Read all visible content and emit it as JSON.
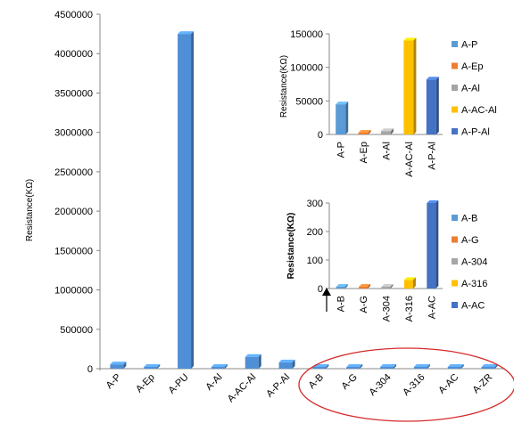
{
  "chart_data": [
    {
      "type": "bar",
      "categories": [
        "A-P",
        "A-Ep",
        "A-PU",
        "A-Al",
        "A-AC-Al",
        "A-P-Al",
        "A-B",
        "A-G",
        "A-304",
        "A-316",
        "A-AC",
        "A-ZR"
      ],
      "values": [
        55000,
        5000,
        4250000,
        3000,
        150000,
        80000,
        0,
        0,
        0,
        0,
        0,
        0
      ],
      "ylabel": "Resistance(KΩ)",
      "ylim": [
        0,
        4500000
      ],
      "yticks": [
        "0",
        "500000",
        "1000000",
        "1500000",
        "2000000",
        "2500000",
        "3000000",
        "3500000",
        "4000000",
        "4500000"
      ],
      "color": "#4f8fd6"
    },
    {
      "type": "bar",
      "categories": [
        "A-P",
        "A-Ep",
        "A-Al",
        "A-AC-Al",
        "A-P-Al"
      ],
      "values": [
        45000,
        1000,
        5000,
        140000,
        82000
      ],
      "colors": [
        "#5b9bd5",
        "#ed7d31",
        "#a5a5a5",
        "#ffc000",
        "#4472c4"
      ],
      "ylabel": "Resistance(KΩ)",
      "ylim": [
        0,
        150000
      ],
      "yticks": [
        "0",
        "50000",
        "100000",
        "150000"
      ],
      "legend": [
        "A-P",
        "A-Ep",
        "A-Al",
        "A-AC-Al",
        "A-P-Al"
      ]
    },
    {
      "type": "bar",
      "categories": [
        "A-B",
        "A-G",
        "A-304",
        "A-316",
        "A-AC"
      ],
      "values": [
        3,
        1,
        6,
        30,
        300
      ],
      "colors": [
        "#5b9bd5",
        "#ed7d31",
        "#a5a5a5",
        "#ffc000",
        "#4472c4"
      ],
      "ylabel": "Resistance(KΩ)",
      "ylim": [
        0,
        300
      ],
      "yticks": [
        "0",
        "100",
        "200",
        "300"
      ],
      "legend": [
        "A-B",
        "A-G",
        "A-304",
        "A-316",
        "A-AC"
      ]
    }
  ]
}
